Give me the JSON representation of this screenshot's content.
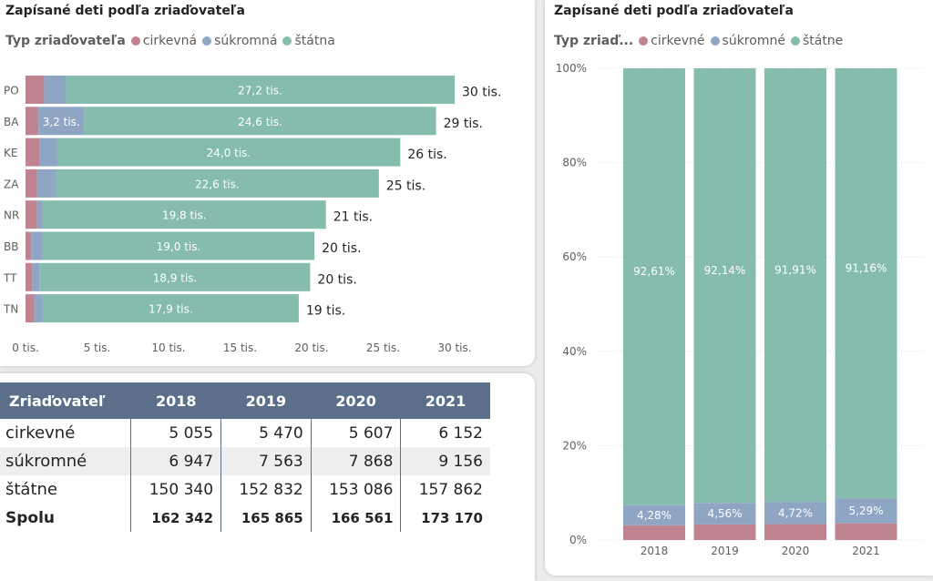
{
  "colors": {
    "cirkevne": "#c08491",
    "sukromne": "#8ea5c3",
    "statne": "#86bcae",
    "header": "#5c6f8a"
  },
  "left_chart": {
    "title": "Zapísané deti podľa zriaďovateľa",
    "legend_title": "Typ zriaďovateľa",
    "legend": [
      "cirkevná",
      "súkromná",
      "štátna"
    ]
  },
  "right_chart": {
    "title": "Zapísané deti podľa zriaďovateľa",
    "legend_title": "Typ zriaď...",
    "legend": [
      "cirkevné",
      "súkromné",
      "štátne"
    ]
  },
  "table": {
    "headers": [
      "Zriaďovateľ",
      "2018",
      "2019",
      "2020",
      "2021"
    ],
    "rows": [
      [
        "cirkevné",
        "5 055",
        "5 470",
        "5 607",
        "6 152"
      ],
      [
        "súkromné",
        "6 947",
        "7 563",
        "7 868",
        "9 156"
      ],
      [
        "štátne",
        "150 340",
        "152 832",
        "153 086",
        "157 862"
      ],
      [
        "Spolu",
        "162 342",
        "165 865",
        "166 561",
        "173 170"
      ]
    ]
  },
  "chart_data": [
    {
      "type": "bar",
      "orientation": "horizontal",
      "stacked": true,
      "categories": [
        "PO",
        "BA",
        "KE",
        "ZA",
        "NR",
        "BB",
        "TT",
        "TN"
      ],
      "series": [
        {
          "name": "cirkevná",
          "values": [
            1.3,
            0.9,
            1.0,
            0.8,
            0.8,
            0.4,
            0.5,
            0.6
          ]
        },
        {
          "name": "súkromná",
          "values": [
            1.5,
            3.2,
            1.2,
            1.3,
            0.4,
            0.8,
            0.5,
            0.6
          ]
        },
        {
          "name": "štátna",
          "values": [
            27.2,
            24.6,
            24.0,
            22.6,
            19.8,
            19.0,
            18.9,
            17.9
          ]
        }
      ],
      "segment_labels": [
        [
          "",
          "",
          "27,2 tis."
        ],
        [
          "",
          "3,2 tis.",
          "24,6 tis."
        ],
        [
          "",
          "",
          "24,0 tis."
        ],
        [
          "",
          "",
          "22,6 tis."
        ],
        [
          "",
          "",
          "19,8 tis."
        ],
        [
          "",
          "",
          "19,0 tis."
        ],
        [
          "",
          "",
          "18,9 tis."
        ],
        [
          "",
          "",
          "17,9 tis."
        ]
      ],
      "total_labels": [
        "30 tis.",
        "29 tis.",
        "26 tis.",
        "25 tis.",
        "21 tis.",
        "20 tis.",
        "20 tis.",
        "19 tis."
      ],
      "xlim": [
        0,
        30
      ],
      "xticks": [
        0,
        5,
        10,
        15,
        20,
        25,
        30
      ],
      "xtick_labels": [
        "0 tis.",
        "5 tis.",
        "10 tis.",
        "15 tis.",
        "20 tis.",
        "25 tis.",
        "30 tis."
      ]
    },
    {
      "type": "bar",
      "stacked": true,
      "percent": true,
      "categories": [
        "2018",
        "2019",
        "2020",
        "2021"
      ],
      "series": [
        {
          "name": "cirkevné",
          "values": [
            3.11,
            3.3,
            3.37,
            3.55
          ]
        },
        {
          "name": "súkromné",
          "values": [
            4.28,
            4.56,
            4.72,
            5.29
          ],
          "labels": [
            "4,28%",
            "4,56%",
            "4,72%",
            "5,29%"
          ]
        },
        {
          "name": "štátne",
          "values": [
            92.61,
            92.14,
            91.91,
            91.16
          ],
          "labels": [
            "92,61%",
            "92,14%",
            "91,91%",
            "91,16%"
          ]
        }
      ],
      "ylim": [
        0,
        100
      ],
      "yticks": [
        0,
        20,
        40,
        60,
        80,
        100
      ],
      "ytick_labels": [
        "0%",
        "20%",
        "40%",
        "60%",
        "80%",
        "100%"
      ],
      "grid": true
    }
  ]
}
